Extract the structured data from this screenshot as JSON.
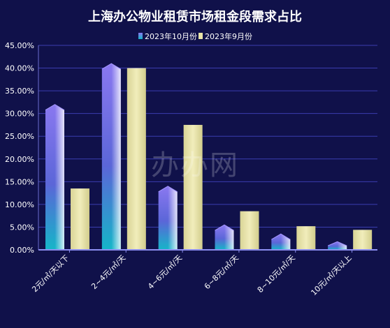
{
  "chart_data": {
    "type": "bar",
    "title": "上海办公物业租赁市场租金段需求占比",
    "categories": [
      "2元/㎡/天以下",
      "2~4元/㎡/天",
      "4~6元/㎡/天",
      "6~8元/㎡/天",
      "8~10元/㎡/天",
      "10元/㎡/天以上"
    ],
    "series": [
      {
        "name": "2023年10月份",
        "values": [
          32.0,
          41.0,
          14.0,
          5.5,
          3.5,
          1.8
        ]
      },
      {
        "name": "2023年9月份",
        "values": [
          13.5,
          40.0,
          27.5,
          8.5,
          5.2,
          4.4
        ]
      }
    ],
    "ylim": [
      0,
      45
    ],
    "yticks": [
      "0.00%",
      "5.00%",
      "10.00%",
      "15.00%",
      "20.00%",
      "25.00%",
      "30.00%",
      "35.00%",
      "40.00%",
      "45.00%"
    ],
    "grid": true,
    "legend_position": "top-center",
    "colors": {
      "background": "#10114a",
      "grid": "#3c3eb4",
      "series1_top": "#7b6ee0",
      "series1_bottom": "#1fa9c4",
      "series2": "#e8e4a8"
    }
  },
  "watermark": "办办网"
}
